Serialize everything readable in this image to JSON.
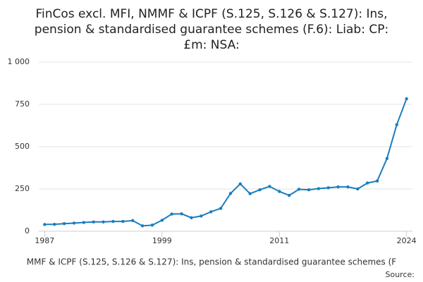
{
  "chart_data": {
    "type": "line",
    "title": [
      "FinCos excl. MFI, NMMF & ICPF (S.125, S.126 & S.127): Ins,",
      "pension & standardised guarantee schemes (F.6): Liab: CP:",
      "£m: NSA:"
    ],
    "x": [
      1987,
      1988,
      1989,
      1990,
      1991,
      1992,
      1993,
      1994,
      1995,
      1996,
      1997,
      1998,
      1999,
      2000,
      2001,
      2002,
      2003,
      2004,
      2005,
      2006,
      2007,
      2008,
      2009,
      2010,
      2011,
      2012,
      2013,
      2014,
      2015,
      2016,
      2017,
      2018,
      2019,
      2020,
      2021,
      2022,
      2023,
      2024
    ],
    "series": [
      {
        "name": "MMF & ICPF (S.125, S.126 & S.127): Ins, pension & standardised guarantee schemes (F",
        "color": "#1a7dbf",
        "values": [
          40,
          41,
          45,
          48,
          52,
          55,
          55,
          58,
          58,
          63,
          32,
          36,
          65,
          102,
          103,
          80,
          90,
          115,
          135,
          223,
          280,
          222,
          245,
          265,
          235,
          212,
          248,
          245,
          252,
          257,
          262,
          262,
          250,
          285,
          297,
          430,
          630,
          783
        ]
      }
    ],
    "xlim": [
      1986.4,
      2024.6
    ],
    "xticks": [
      1987,
      1999,
      2011,
      2024
    ],
    "ylim": [
      0,
      1000
    ],
    "yticks": [
      0,
      250,
      500,
      750,
      {
        "value": 1000,
        "label": "1 000"
      }
    ],
    "grid": true,
    "source": "Source:"
  }
}
